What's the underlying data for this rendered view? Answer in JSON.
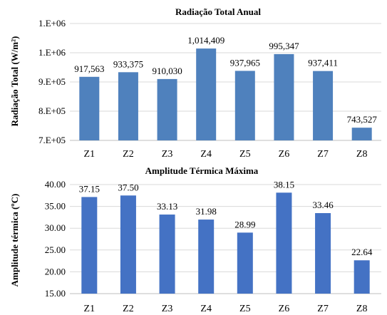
{
  "chart_data": [
    {
      "type": "bar",
      "title": "Radiação Total Anual",
      "ylabel": "Radiação Total (W/m²)",
      "xlabel": "",
      "categories": [
        "Z1",
        "Z2",
        "Z3",
        "Z4",
        "Z5",
        "Z6",
        "Z7",
        "Z8"
      ],
      "values": [
        917563,
        933375,
        910030,
        1014409,
        937965,
        995347,
        937411,
        743527
      ],
      "data_labels": [
        "917,563",
        "933,375",
        "910,030",
        "1,014,409",
        "937,965",
        "995,347",
        "937,411",
        "743,527"
      ],
      "ylim": [
        700000,
        1100000
      ],
      "yticks": [
        700000,
        800000,
        900000,
        1000000,
        1100000
      ],
      "ytick_labels": [
        "7.E+05",
        "8.E+05",
        "9.E+05",
        "1.E+06",
        "1.E+06"
      ],
      "grid": true,
      "bar_color": "#4f81bd"
    },
    {
      "type": "bar",
      "title": "Amplitude Térmica Máxima",
      "ylabel": "Amplitude térmica (ºC)",
      "xlabel": "",
      "categories": [
        "Z1",
        "Z2",
        "Z3",
        "Z4",
        "Z5",
        "Z6",
        "Z7",
        "Z8"
      ],
      "values": [
        37.15,
        37.5,
        33.13,
        31.98,
        28.99,
        38.15,
        33.46,
        22.64
      ],
      "data_labels": [
        "37.15",
        "37.50",
        "33.13",
        "31.98",
        "28.99",
        "38.15",
        "33.46",
        "22.64"
      ],
      "ylim": [
        15,
        40
      ],
      "yticks": [
        15,
        20,
        25,
        30,
        35,
        40
      ],
      "ytick_labels": [
        "15.00",
        "20.00",
        "25.00",
        "30.00",
        "35.00",
        "40.00"
      ],
      "grid": true,
      "bar_color": "#4472c4"
    }
  ]
}
